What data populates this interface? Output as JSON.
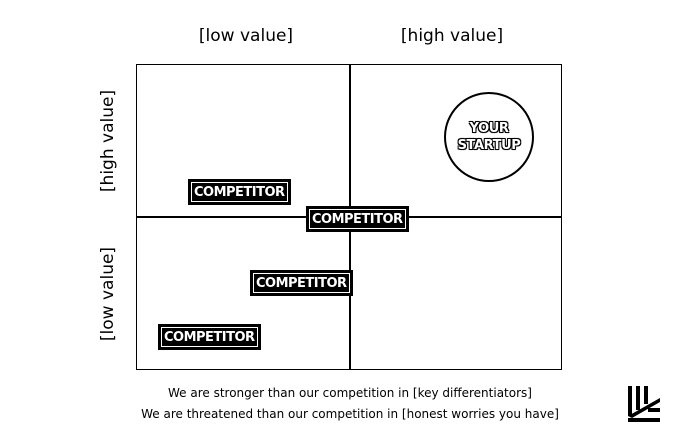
{
  "axes": {
    "column_labels": [
      "[low value]",
      "[high value]"
    ],
    "row_labels": [
      "[high value]",
      "[low value]"
    ]
  },
  "items": [
    {
      "label": "YOUR",
      "label2": "STARTUP"
    },
    {
      "label": "COMPETITOR"
    },
    {
      "label": "COMPETITOR"
    },
    {
      "label": "COMPETITOR"
    },
    {
      "label": "COMPETITOR"
    }
  ],
  "footer": {
    "line1": "We are stronger than our competition in [key differentiators]",
    "line2": "We are threatened than our competition in [honest worries you have]"
  },
  "colors": {
    "ink": "#000000",
    "background": "#ffffff"
  },
  "icons": {
    "logo": "brand-logo-icon"
  }
}
